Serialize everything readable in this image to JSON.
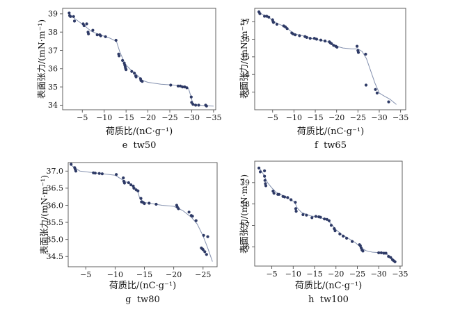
{
  "page": {
    "background": "#ffffff"
  },
  "colors": {
    "marker": "#2e3a66",
    "fit_line": "#8390ae",
    "axis": "#4f4f4f",
    "text": "#111111"
  },
  "chart_data": [
    {
      "id": "e",
      "type": "scatter",
      "caption": "e  tw50",
      "xlabel": "荷质比/(nC·g⁻¹)",
      "ylabel": "表面张力/(mN·m⁻¹)",
      "xlim": [
        -0.5,
        -35.5
      ],
      "ylim": [
        33.75,
        39.3
      ],
      "xticks": [
        -5,
        -10,
        -15,
        -20,
        -25,
        -30,
        -35
      ],
      "xtick_labels": [
        "−5",
        "−10",
        "−15",
        "−20",
        "−25",
        "−30",
        "−35"
      ],
      "yticks": [
        34,
        35,
        36,
        37,
        38,
        39
      ],
      "ytick_labels": [
        "34",
        "35",
        "36",
        "37",
        "38",
        "39"
      ],
      "legend": null,
      "grid": false,
      "points": [
        [
          -2.0,
          39.05
        ],
        [
          -2.1,
          38.9
        ],
        [
          -2.3,
          38.85
        ],
        [
          -3.0,
          38.85
        ],
        [
          -3.2,
          38.6
        ],
        [
          -5.2,
          38.45
        ],
        [
          -5.4,
          38.35
        ],
        [
          -6.0,
          38.45
        ],
        [
          -6.3,
          38.0
        ],
        [
          -6.4,
          37.9
        ],
        [
          -7.4,
          38.1
        ],
        [
          -8.4,
          37.85
        ],
        [
          -9.0,
          37.85
        ],
        [
          -9.2,
          37.8
        ],
        [
          -10.3,
          37.75
        ],
        [
          -12.7,
          37.55
        ],
        [
          -13.3,
          36.8
        ],
        [
          -13.4,
          36.7
        ],
        [
          -14.2,
          36.45
        ],
        [
          -14.6,
          36.3
        ],
        [
          -14.7,
          36.2
        ],
        [
          -14.8,
          36.1
        ],
        [
          -14.9,
          36.0
        ],
        [
          -15.0,
          35.95
        ],
        [
          -16.3,
          35.85
        ],
        [
          -16.9,
          35.75
        ],
        [
          -17.2,
          35.6
        ],
        [
          -17.3,
          35.55
        ],
        [
          -18.3,
          35.45
        ],
        [
          -18.4,
          35.35
        ],
        [
          -18.7,
          35.3
        ],
        [
          -25.2,
          35.1
        ],
        [
          -26.9,
          35.05
        ],
        [
          -27.4,
          35.05
        ],
        [
          -27.9,
          35.0
        ],
        [
          -28.4,
          35.0
        ],
        [
          -28.9,
          34.95
        ],
        [
          -29.9,
          34.45
        ],
        [
          -30.0,
          34.15
        ],
        [
          -30.3,
          34.05
        ],
        [
          -30.9,
          34.0
        ],
        [
          -31.6,
          34.0
        ],
        [
          -33.2,
          34.0
        ],
        [
          -33.4,
          33.95
        ]
      ],
      "fit_line": [
        [
          -2,
          39.0
        ],
        [
          -3.2,
          38.75
        ],
        [
          -5.5,
          38.35
        ],
        [
          -7,
          38.05
        ],
        [
          -9,
          37.85
        ],
        [
          -11,
          37.7
        ],
        [
          -12.8,
          37.5
        ],
        [
          -13.6,
          36.9
        ],
        [
          -14.8,
          36.25
        ],
        [
          -16,
          35.95
        ],
        [
          -17.5,
          35.65
        ],
        [
          -18.8,
          35.35
        ],
        [
          -20,
          35.25
        ],
        [
          -23,
          35.15
        ],
        [
          -26,
          35.1
        ],
        [
          -28.5,
          35.0
        ],
        [
          -29.3,
          34.9
        ],
        [
          -29.8,
          34.5
        ],
        [
          -30.3,
          34.05
        ],
        [
          -31.5,
          34.0
        ],
        [
          -33.5,
          33.97
        ],
        [
          -35,
          33.95
        ]
      ]
    },
    {
      "id": "f",
      "type": "scatter",
      "caption": "f  tw65",
      "xlabel": "荷质比/(nC·g⁻¹)",
      "ylabel": "表面张力/(mN·m⁻¹)",
      "xlim": [
        -0.8,
        -36.2
      ],
      "ylim": [
        32.0,
        37.75
      ],
      "xticks": [
        -5,
        -10,
        -15,
        -20,
        -25,
        -30,
        -35
      ],
      "xtick_labels": [
        "−5",
        "−10",
        "−15",
        "−20",
        "−25",
        "−30",
        "−35"
      ],
      "yticks": [
        33,
        34,
        35,
        36,
        37
      ],
      "ytick_labels": [
        "33",
        "34",
        "35",
        "36",
        "37"
      ],
      "legend": null,
      "grid": false,
      "points": [
        [
          -1.8,
          37.55
        ],
        [
          -2.0,
          37.45
        ],
        [
          -3.1,
          37.3
        ],
        [
          -3.6,
          37.3
        ],
        [
          -4.1,
          37.25
        ],
        [
          -5.0,
          37.1
        ],
        [
          -5.1,
          37.0
        ],
        [
          -5.2,
          36.95
        ],
        [
          -6.0,
          36.85
        ],
        [
          -7.6,
          36.75
        ],
        [
          -8.0,
          36.7
        ],
        [
          -8.4,
          36.6
        ],
        [
          -9.5,
          36.35
        ],
        [
          -9.8,
          36.3
        ],
        [
          -10.3,
          36.25
        ],
        [
          -11.3,
          36.2
        ],
        [
          -12.6,
          36.15
        ],
        [
          -13.0,
          36.1
        ],
        [
          -13.8,
          36.05
        ],
        [
          -14.8,
          36.05
        ],
        [
          -15.3,
          36.0
        ],
        [
          -16.3,
          35.95
        ],
        [
          -17.3,
          35.9
        ],
        [
          -18.3,
          35.85
        ],
        [
          -18.5,
          35.8
        ],
        [
          -18.8,
          35.75
        ],
        [
          -19.3,
          35.65
        ],
        [
          -19.8,
          35.6
        ],
        [
          -20.1,
          35.55
        ],
        [
          -24.8,
          35.6
        ],
        [
          -25.0,
          35.35
        ],
        [
          -25.1,
          35.25
        ],
        [
          -26.8,
          35.15
        ],
        [
          -26.9,
          33.4
        ],
        [
          -29.1,
          33.15
        ],
        [
          -29.5,
          32.95
        ],
        [
          -32.2,
          32.45
        ]
      ],
      "fit_line": [
        [
          -1.8,
          37.5
        ],
        [
          -4,
          37.25
        ],
        [
          -6,
          36.9
        ],
        [
          -8,
          36.7
        ],
        [
          -9,
          36.5
        ],
        [
          -10,
          36.3
        ],
        [
          -12,
          36.2
        ],
        [
          -14,
          36.05
        ],
        [
          -16,
          35.95
        ],
        [
          -18,
          35.85
        ],
        [
          -20,
          35.6
        ],
        [
          -21.5,
          35.5
        ],
        [
          -23.5,
          35.45
        ],
        [
          -25,
          35.45
        ],
        [
          -26,
          35.3
        ],
        [
          -27,
          34.9
        ],
        [
          -28,
          34.2
        ],
        [
          -29,
          33.5
        ],
        [
          -30,
          32.95
        ],
        [
          -31,
          32.8
        ],
        [
          -32.5,
          32.6
        ],
        [
          -34,
          32.3
        ]
      ]
    },
    {
      "id": "g",
      "type": "scatter",
      "caption": "g  tw80",
      "xlabel": "荷质比/(nC·g⁻¹)",
      "ylabel": "表面张力/(mN·m⁻¹)",
      "xlim": [
        -2.0,
        -27.4
      ],
      "ylim": [
        34.2,
        37.25
      ],
      "xticks": [
        -5,
        -10,
        -15,
        -20,
        -25
      ],
      "xtick_labels": [
        "−5",
        "−10",
        "−15",
        "−20",
        "−25"
      ],
      "yticks": [
        34.5,
        35.0,
        35.5,
        36.0,
        36.5,
        37.0
      ],
      "ytick_labels": [
        "34.5",
        "35.0",
        "35.5",
        "36.0",
        "36.5",
        "37.0"
      ],
      "legend": null,
      "grid": false,
      "points": [
        [
          -2.5,
          37.2
        ],
        [
          -3.1,
          37.1
        ],
        [
          -3.2,
          37.05
        ],
        [
          -3.3,
          37.0
        ],
        [
          -6.3,
          36.95
        ],
        [
          -6.6,
          36.94
        ],
        [
          -7.3,
          36.93
        ],
        [
          -7.8,
          36.92
        ],
        [
          -10.2,
          36.9
        ],
        [
          -11.4,
          36.8
        ],
        [
          -11.5,
          36.7
        ],
        [
          -11.6,
          36.65
        ],
        [
          -12.3,
          36.66
        ],
        [
          -12.7,
          36.6
        ],
        [
          -13.1,
          36.56
        ],
        [
          -13.2,
          36.5
        ],
        [
          -13.6,
          36.45
        ],
        [
          -13.9,
          36.42
        ],
        [
          -14.4,
          36.2
        ],
        [
          -14.5,
          36.1
        ],
        [
          -14.8,
          36.08
        ],
        [
          -15.0,
          36.05
        ],
        [
          -15.8,
          36.06
        ],
        [
          -17.0,
          36.03
        ],
        [
          -20.5,
          36.0
        ],
        [
          -20.6,
          35.95
        ],
        [
          -20.8,
          35.9
        ],
        [
          -22.6,
          35.8
        ],
        [
          -23.0,
          35.7
        ],
        [
          -23.2,
          35.68
        ],
        [
          -23.8,
          35.55
        ],
        [
          -25.1,
          35.12
        ],
        [
          -25.8,
          35.08
        ],
        [
          -24.7,
          34.75
        ],
        [
          -24.9,
          34.72
        ],
        [
          -25.0,
          34.7
        ],
        [
          -25.3,
          34.64
        ],
        [
          -25.6,
          34.56
        ]
      ],
      "fit_line": [
        [
          -2.5,
          37.17
        ],
        [
          -4,
          37.0
        ],
        [
          -6,
          36.96
        ],
        [
          -8,
          36.92
        ],
        [
          -10,
          36.88
        ],
        [
          -11.5,
          36.72
        ],
        [
          -12.8,
          36.6
        ],
        [
          -13.8,
          36.45
        ],
        [
          -14.2,
          36.2
        ],
        [
          -15,
          36.08
        ],
        [
          -16.5,
          36.04
        ],
        [
          -18,
          36.0
        ],
        [
          -20,
          35.97
        ],
        [
          -21.5,
          35.85
        ],
        [
          -23,
          35.65
        ],
        [
          -24,
          35.45
        ],
        [
          -25,
          35.1
        ],
        [
          -25.8,
          34.75
        ],
        [
          -26.6,
          34.35
        ]
      ]
    },
    {
      "id": "h",
      "type": "scatter",
      "caption": "h  tw100",
      "xlabel": "荷质比/(nC·g⁻¹)",
      "ylabel": "表面张力/(mN·m⁻¹)",
      "xlim": [
        -1.0,
        -35.5
      ],
      "ylim": [
        35.1,
        40.0
      ],
      "xticks": [
        -5,
        -10,
        -15,
        -20,
        -25,
        -30,
        -35
      ],
      "xtick_labels": [
        "−5",
        "−10",
        "−15",
        "−20",
        "−25",
        "−30",
        "−35"
      ],
      "yticks": [
        36,
        37,
        38,
        39
      ],
      "ytick_labels": [
        "36",
        "37",
        "38",
        "39"
      ],
      "legend": null,
      "grid": false,
      "points": [
        [
          -2.0,
          39.68
        ],
        [
          -2.3,
          39.5
        ],
        [
          -3.3,
          39.55
        ],
        [
          -3.3,
          39.3
        ],
        [
          -3.4,
          39.1
        ],
        [
          -3.5,
          38.95
        ],
        [
          -3.6,
          38.85
        ],
        [
          -5.3,
          38.6
        ],
        [
          -5.5,
          38.5
        ],
        [
          -6.4,
          38.45
        ],
        [
          -6.7,
          38.45
        ],
        [
          -7.6,
          38.35
        ],
        [
          -8.0,
          38.33
        ],
        [
          -8.7,
          38.3
        ],
        [
          -9.5,
          38.2
        ],
        [
          -10.5,
          38.08
        ],
        [
          -10.6,
          37.78
        ],
        [
          -10.7,
          37.66
        ],
        [
          -12.3,
          37.5
        ],
        [
          -13.1,
          37.48
        ],
        [
          -14.4,
          37.36
        ],
        [
          -15.3,
          37.42
        ],
        [
          -16.0,
          37.4
        ],
        [
          -16.4,
          37.38
        ],
        [
          -17.3,
          37.3
        ],
        [
          -17.9,
          37.28
        ],
        [
          -18.4,
          37.22
        ],
        [
          -18.9,
          37.0
        ],
        [
          -19.6,
          36.85
        ],
        [
          -19.8,
          36.75
        ],
        [
          -20.9,
          36.6
        ],
        [
          -21.7,
          36.5
        ],
        [
          -22.5,
          36.4
        ],
        [
          -23.8,
          36.25
        ],
        [
          -25.5,
          36.1
        ],
        [
          -25.7,
          36.05
        ],
        [
          -25.9,
          35.95
        ],
        [
          -26.1,
          35.85
        ],
        [
          -26.3,
          35.8
        ],
        [
          -30.0,
          35.72
        ],
        [
          -30.6,
          35.72
        ],
        [
          -31.2,
          35.7
        ],
        [
          -31.7,
          35.7
        ],
        [
          -32.3,
          35.55
        ],
        [
          -32.8,
          35.5
        ],
        [
          -33.2,
          35.4
        ],
        [
          -33.5,
          35.35
        ],
        [
          -33.8,
          35.3
        ]
      ],
      "fit_line": [
        [
          -2,
          39.72
        ],
        [
          -3,
          39.4
        ],
        [
          -4,
          39.0
        ],
        [
          -5,
          38.75
        ],
        [
          -6,
          38.55
        ],
        [
          -7.5,
          38.4
        ],
        [
          -9,
          38.25
        ],
        [
          -10.3,
          38.1
        ],
        [
          -11,
          37.8
        ],
        [
          -12,
          37.6
        ],
        [
          -14,
          37.45
        ],
        [
          -16,
          37.38
        ],
        [
          -18,
          37.25
        ],
        [
          -19,
          37.05
        ],
        [
          -20,
          36.8
        ],
        [
          -21.5,
          36.55
        ],
        [
          -23,
          36.38
        ],
        [
          -24.5,
          36.2
        ],
        [
          -26,
          35.95
        ],
        [
          -27,
          35.82
        ],
        [
          -28.5,
          35.75
        ],
        [
          -30.5,
          35.72
        ],
        [
          -32,
          35.65
        ],
        [
          -33,
          35.5
        ],
        [
          -34,
          35.3
        ]
      ]
    }
  ]
}
